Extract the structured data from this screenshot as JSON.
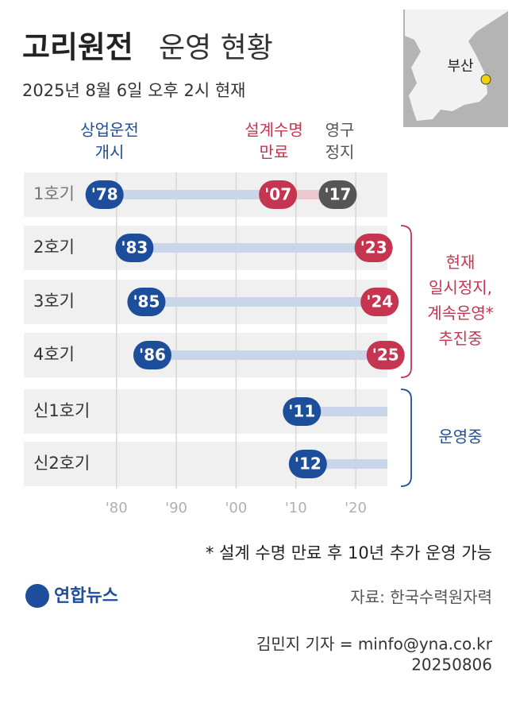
{
  "chart_data": {
    "type": "timeline",
    "title": "고리원전",
    "title_rest": "운영 현황",
    "subtitle": "2025년 8월 6일 오후 2시 현재",
    "map_label": "부산",
    "categories": [
      "1호기",
      "2호기",
      "3호기",
      "4호기",
      "신1호기",
      "신2호기"
    ],
    "series": [
      {
        "name": [
          "상업운전",
          "개시"
        ],
        "color": "#1d4e9b",
        "values": [
          1978,
          1983,
          1985,
          1986,
          2011,
          2012
        ],
        "value_labels": [
          "'78",
          "'83",
          "'85",
          "'86",
          "'11",
          "'12"
        ]
      },
      {
        "name": [
          "설계수명",
          "만료"
        ],
        "color": "#c5354f",
        "values": [
          2007,
          2023,
          2024,
          2025,
          null,
          null
        ],
        "value_labels": [
          "'07",
          "'23",
          "'24",
          "'25",
          null,
          null
        ]
      },
      {
        "name": [
          "영구",
          "정지"
        ],
        "color": "#555555",
        "values": [
          2017,
          null,
          null,
          null,
          null,
          null
        ],
        "value_labels": [
          "'17",
          null,
          null,
          null,
          null,
          null
        ]
      }
    ],
    "xlim": [
      1964.5,
      2025.3
    ],
    "xticks": [
      {
        "value": 1980,
        "label": "'80"
      },
      {
        "value": 1990,
        "label": "'90"
      },
      {
        "value": 2000,
        "label": "'00"
      },
      {
        "value": 2010,
        "label": "'10"
      },
      {
        "value": 2020,
        "label": "'20"
      }
    ],
    "grid": true,
    "annotations": [
      {
        "lines": [
          "현재",
          "일시정지,",
          "계속운영*",
          "추진중"
        ],
        "color": "#c5354f"
      },
      {
        "lines": [
          "운영중"
        ],
        "color": "#1d4e9b"
      }
    ],
    "footnote": "* 설계 수명 만료 후 10년 추가 운영 가능",
    "logo": "연합뉴스",
    "source": "자료: 한국수력원자력",
    "credit": "김민지 기자 = minfo@yna.co.kr",
    "date_code": "20250806"
  }
}
